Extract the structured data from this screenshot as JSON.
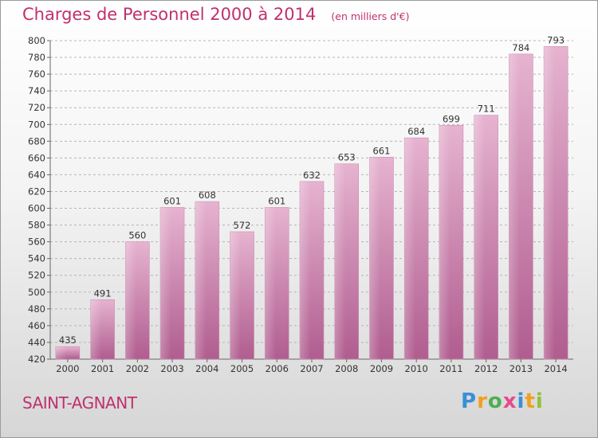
{
  "chart_data": {
    "type": "bar",
    "title": "Charges de Personnel 2000 à 2014",
    "unit": "(en milliers d'€)",
    "categories": [
      "2000",
      "2001",
      "2002",
      "2003",
      "2004",
      "2005",
      "2006",
      "2007",
      "2008",
      "2009",
      "2010",
      "2011",
      "2012",
      "2013",
      "2014"
    ],
    "values": [
      435,
      491,
      560,
      601,
      608,
      572,
      601,
      632,
      653,
      661,
      684,
      699,
      711,
      784,
      793
    ],
    "ylim": [
      420,
      800
    ],
    "ytick_step": 20,
    "grid": "horizontal dashed",
    "bar_color": "#c86fa0"
  },
  "place": "SAINT-AGNANT",
  "logo": {
    "letters": [
      "P",
      "r",
      "o",
      "x",
      "i",
      "t",
      "i"
    ],
    "colors": [
      "#3a8fd6",
      "#f0a020",
      "#4caf50",
      "#e84a8a",
      "#3a8fd6",
      "#f0a020",
      "#8fc23a"
    ]
  },
  "colors": {
    "accent": "#c0306e"
  }
}
